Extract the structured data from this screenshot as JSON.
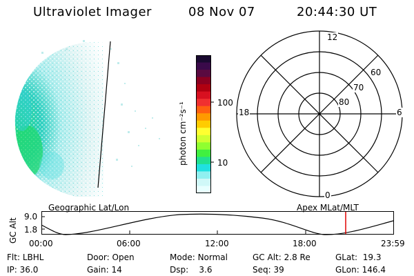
{
  "header": {
    "instrument": "Ultraviolet Imager",
    "date": "08 Nov 07",
    "time": "20:44:30 UT"
  },
  "colorbar": {
    "unit_label": "photon cm⁻²s⁻¹",
    "tick_labels": [
      "100",
      "10"
    ],
    "colors": [
      "#1a0a30",
      "#3a0a4a",
      "#5a0a40",
      "#8b0020",
      "#b00010",
      "#d81020",
      "#f03030",
      "#ff6010",
      "#ff9a00",
      "#ffcc00",
      "#ffff30",
      "#d0ff30",
      "#90ff30",
      "#40f040",
      "#20e090",
      "#20e0e0",
      "#90f0f0",
      "#d0f8f8",
      "#e8ffff"
    ]
  },
  "polar_plot": {
    "mlt_labels": {
      "top": "12",
      "bottom": "0",
      "left": "18",
      "right": "6"
    },
    "lat_labels": [
      "60",
      "70",
      "80"
    ]
  },
  "map_labels": {
    "geographic": "Geographic Lat/Lon",
    "apex": "Apex MLat/MLT"
  },
  "orbit_plot": {
    "axis_label": "GC Alt",
    "y_ticks": [
      "9.0",
      "1.8"
    ],
    "x_ticks": [
      "00:00",
      "06:00",
      "12:00",
      "18:00",
      "23:59"
    ]
  },
  "status": {
    "filter": {
      "label": "Flt:",
      "value": "LBHL"
    },
    "door": {
      "label": "Door:",
      "value": "Open"
    },
    "mode": {
      "label": "Mode:",
      "value": "Normal"
    },
    "gc_alt": {
      "label": "GC Alt:",
      "value": "2.8 Re"
    },
    "glat": {
      "label": "GLat:",
      "value": "19.3"
    },
    "ip": {
      "label": "IP:",
      "value": "36.0"
    },
    "gain": {
      "label": "Gain:",
      "value": "14"
    },
    "dsp": {
      "label": "Dsp:",
      "value": "3.6"
    },
    "seq": {
      "label": "Seq:",
      "value": "39"
    },
    "glon": {
      "label": "GLon:",
      "value": "146.4"
    }
  }
}
